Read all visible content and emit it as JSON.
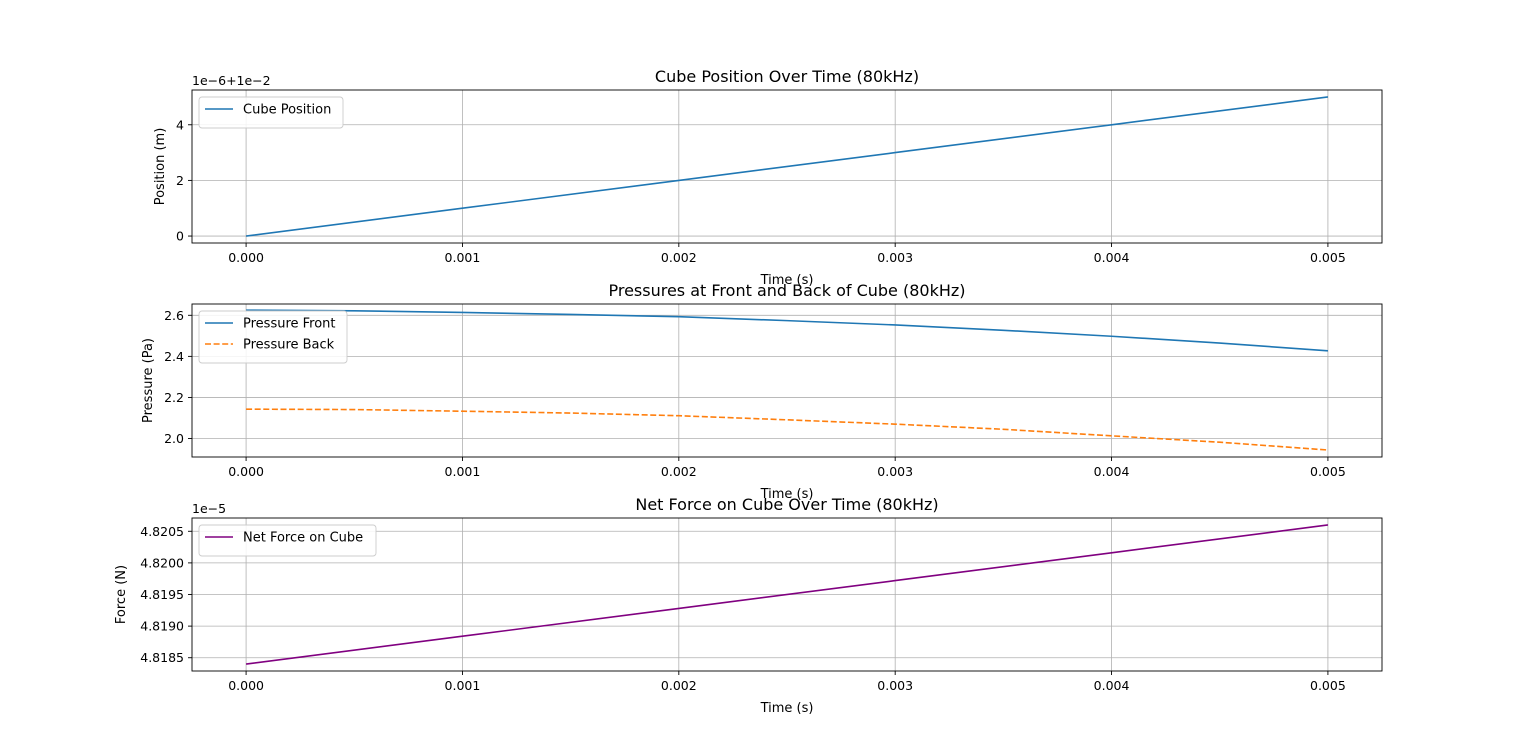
{
  "chart_data": [
    {
      "type": "line",
      "title": "Cube Position Over Time (80kHz)",
      "xlabel": "Time (s)",
      "ylabel": "Position (m)",
      "offset_text": "1e−6+1e−2",
      "xlim": [
        -0.00025,
        0.00525
      ],
      "ylim": [
        -0.25,
        5.25
      ],
      "x_ticks": [
        0,
        0.001,
        0.002,
        0.003,
        0.004,
        0.005
      ],
      "x_tick_labels": [
        "0.000",
        "0.001",
        "0.002",
        "0.003",
        "0.004",
        "0.005"
      ],
      "y_ticks": [
        0,
        2,
        4
      ],
      "y_tick_labels": [
        "0",
        "2",
        "4"
      ],
      "grid": true,
      "legend_position": "upper-left",
      "series": [
        {
          "name": "Cube Position",
          "color": "#1f77b4",
          "dash": "solid",
          "x": [
            0,
            0.001,
            0.002,
            0.003,
            0.004,
            0.005
          ],
          "y": [
            0,
            1,
            2,
            3,
            4,
            5
          ]
        }
      ]
    },
    {
      "type": "line",
      "title": "Pressures at Front and Back of Cube (80kHz)",
      "xlabel": "Time (s)",
      "ylabel": "Pressure (Pa)",
      "xlim": [
        -0.00025,
        0.00525
      ],
      "ylim": [
        1.91,
        2.655
      ],
      "x_ticks": [
        0,
        0.001,
        0.002,
        0.003,
        0.004,
        0.005
      ],
      "x_tick_labels": [
        "0.000",
        "0.001",
        "0.002",
        "0.003",
        "0.004",
        "0.005"
      ],
      "y_ticks": [
        2.0,
        2.2,
        2.4,
        2.6
      ],
      "y_tick_labels": [
        "2.0",
        "2.2",
        "2.4",
        "2.6"
      ],
      "grid": true,
      "legend_position": "upper-left",
      "series": [
        {
          "name": "Pressure Front",
          "color": "#1f77b4",
          "dash": "solid",
          "x": [
            0,
            0.0005,
            0.001,
            0.0015,
            0.002,
            0.0025,
            0.003,
            0.0035,
            0.004,
            0.0045,
            0.005
          ],
          "y": [
            2.625,
            2.622,
            2.614,
            2.604,
            2.593,
            2.574,
            2.553,
            2.527,
            2.498,
            2.465,
            2.427
          ]
        },
        {
          "name": "Pressure Back",
          "color": "#ff7f0e",
          "dash": "dashed",
          "x": [
            0,
            0.0005,
            0.001,
            0.0015,
            0.002,
            0.0025,
            0.003,
            0.0035,
            0.004,
            0.0045,
            0.005
          ],
          "y": [
            2.143,
            2.141,
            2.133,
            2.124,
            2.111,
            2.091,
            2.07,
            2.045,
            2.013,
            1.982,
            1.944
          ]
        }
      ]
    },
    {
      "type": "line",
      "title": "Net Force on Cube Over Time (80kHz)",
      "xlabel": "Time (s)",
      "ylabel": "Force (N)",
      "offset_text": "1e−5",
      "xlim": [
        -0.00025,
        0.00525
      ],
      "ylim": [
        4.81829,
        4.82071
      ],
      "x_ticks": [
        0,
        0.001,
        0.002,
        0.003,
        0.004,
        0.005
      ],
      "x_tick_labels": [
        "0.000",
        "0.001",
        "0.002",
        "0.003",
        "0.004",
        "0.005"
      ],
      "y_ticks": [
        4.8185,
        4.819,
        4.8195,
        4.82,
        4.8205
      ],
      "y_tick_labels": [
        "4.8185",
        "4.8190",
        "4.8195",
        "4.8200",
        "4.8205"
      ],
      "grid": true,
      "legend_position": "upper-left",
      "series": [
        {
          "name": "Net Force on Cube",
          "color": "#800080",
          "dash": "solid",
          "x": [
            0,
            0.001,
            0.002,
            0.003,
            0.004,
            0.005
          ],
          "y": [
            4.8184,
            4.81884,
            4.81928,
            4.81972,
            4.82016,
            4.8206
          ]
        }
      ]
    }
  ]
}
